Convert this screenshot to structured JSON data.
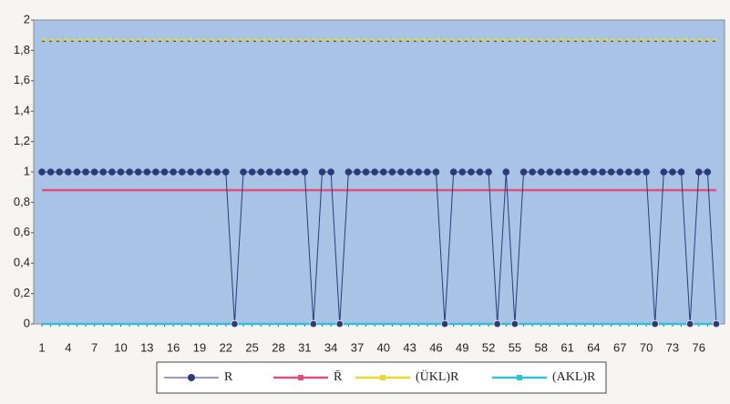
{
  "chart_data": {
    "type": "line",
    "categories": [
      1,
      null,
      null,
      4,
      null,
      null,
      7,
      null,
      null,
      10,
      null,
      null,
      13,
      null,
      null,
      16,
      null,
      null,
      19,
      null,
      null,
      22,
      null,
      null,
      25,
      null,
      null,
      28,
      null,
      null,
      31,
      null,
      null,
      34,
      null,
      null,
      37,
      null,
      null,
      40,
      null,
      null,
      43,
      null,
      null,
      46,
      null,
      null,
      49,
      null,
      null,
      52,
      null,
      null,
      55,
      null,
      null,
      58,
      null,
      null,
      61,
      null,
      null,
      64,
      null,
      null,
      67,
      null,
      null,
      70,
      null,
      null,
      73,
      null,
      null,
      76,
      null,
      null
    ],
    "series": [
      {
        "name": "R",
        "color": "#2b3a78",
        "values": [
          1,
          1,
          1,
          1,
          1,
          1,
          1,
          1,
          1,
          1,
          1,
          1,
          1,
          1,
          1,
          1,
          1,
          1,
          1,
          1,
          1,
          1,
          0,
          1,
          1,
          1,
          1,
          1,
          1,
          1,
          1,
          0,
          1,
          1,
          0,
          1,
          1,
          1,
          1,
          1,
          1,
          1,
          1,
          1,
          1,
          1,
          0,
          1,
          1,
          1,
          1,
          1,
          0,
          1,
          0,
          1,
          1,
          1,
          1,
          1,
          1,
          1,
          1,
          1,
          1,
          1,
          1,
          1,
          1,
          1,
          0,
          1,
          1,
          1,
          0,
          1,
          1,
          0
        ]
      },
      {
        "name": "R̄",
        "color": "#e0507a",
        "values": [
          0.88,
          0.88,
          0.88,
          0.88,
          0.88,
          0.88,
          0.88,
          0.88,
          0.88,
          0.88,
          0.88,
          0.88,
          0.88,
          0.88,
          0.88,
          0.88,
          0.88,
          0.88,
          0.88,
          0.88,
          0.88,
          0.88,
          0.88,
          0.88,
          0.88,
          0.88,
          0.88,
          0.88,
          0.88,
          0.88,
          0.88,
          0.88,
          0.88,
          0.88,
          0.88,
          0.88,
          0.88,
          0.88,
          0.88,
          0.88,
          0.88,
          0.88,
          0.88,
          0.88,
          0.88,
          0.88,
          0.88,
          0.88,
          0.88,
          0.88,
          0.88,
          0.88,
          0.88,
          0.88,
          0.88,
          0.88,
          0.88,
          0.88,
          0.88,
          0.88,
          0.88,
          0.88,
          0.88,
          0.88,
          0.88,
          0.88,
          0.88,
          0.88,
          0.88,
          0.88,
          0.88,
          0.88,
          0.88,
          0.88,
          0.88,
          0.88,
          0.88,
          0.88
        ]
      },
      {
        "name": "(ÜKL)R",
        "color": "#e8d830",
        "values": [
          1.87,
          1.87,
          1.87,
          1.87,
          1.87,
          1.87,
          1.87,
          1.87,
          1.87,
          1.87,
          1.87,
          1.87,
          1.87,
          1.87,
          1.87,
          1.87,
          1.87,
          1.87,
          1.87,
          1.87,
          1.87,
          1.87,
          1.87,
          1.87,
          1.87,
          1.87,
          1.87,
          1.87,
          1.87,
          1.87,
          1.87,
          1.87,
          1.87,
          1.87,
          1.87,
          1.87,
          1.87,
          1.87,
          1.87,
          1.87,
          1.87,
          1.87,
          1.87,
          1.87,
          1.87,
          1.87,
          1.87,
          1.87,
          1.87,
          1.87,
          1.87,
          1.87,
          1.87,
          1.87,
          1.87,
          1.87,
          1.87,
          1.87,
          1.87,
          1.87,
          1.87,
          1.87,
          1.87,
          1.87,
          1.87,
          1.87,
          1.87,
          1.87,
          1.87,
          1.87,
          1.87,
          1.87,
          1.87,
          1.87,
          1.87,
          1.87,
          1.87,
          1.87
        ]
      },
      {
        "name": "(AKL)R",
        "color": "#30c0d8",
        "values": [
          0,
          0,
          0,
          0,
          0,
          0,
          0,
          0,
          0,
          0,
          0,
          0,
          0,
          0,
          0,
          0,
          0,
          0,
          0,
          0,
          0,
          0,
          0,
          0,
          0,
          0,
          0,
          0,
          0,
          0,
          0,
          0,
          0,
          0,
          0,
          0,
          0,
          0,
          0,
          0,
          0,
          0,
          0,
          0,
          0,
          0,
          0,
          0,
          0,
          0,
          0,
          0,
          0,
          0,
          0,
          0,
          0,
          0,
          0,
          0,
          0,
          0,
          0,
          0,
          0,
          0,
          0,
          0,
          0,
          0,
          0,
          0,
          0,
          0,
          0,
          0,
          0,
          0
        ]
      }
    ],
    "ylim": [
      0,
      2
    ],
    "yticks": [
      0,
      {
        "value": 0.2,
        "label": "0,2"
      },
      {
        "value": 0.4,
        "label": "0,4"
      },
      {
        "value": 0.6,
        "label": "0,6"
      },
      {
        "value": 0.8,
        "label": "0,8"
      },
      1,
      {
        "value": 1.2,
        "label": "1,2"
      },
      {
        "value": 1.4,
        "label": "1,4"
      },
      {
        "value": 1.6,
        "label": "1,6"
      },
      {
        "value": 1.8,
        "label": "1,8"
      },
      2
    ],
    "legend": "bottom"
  }
}
